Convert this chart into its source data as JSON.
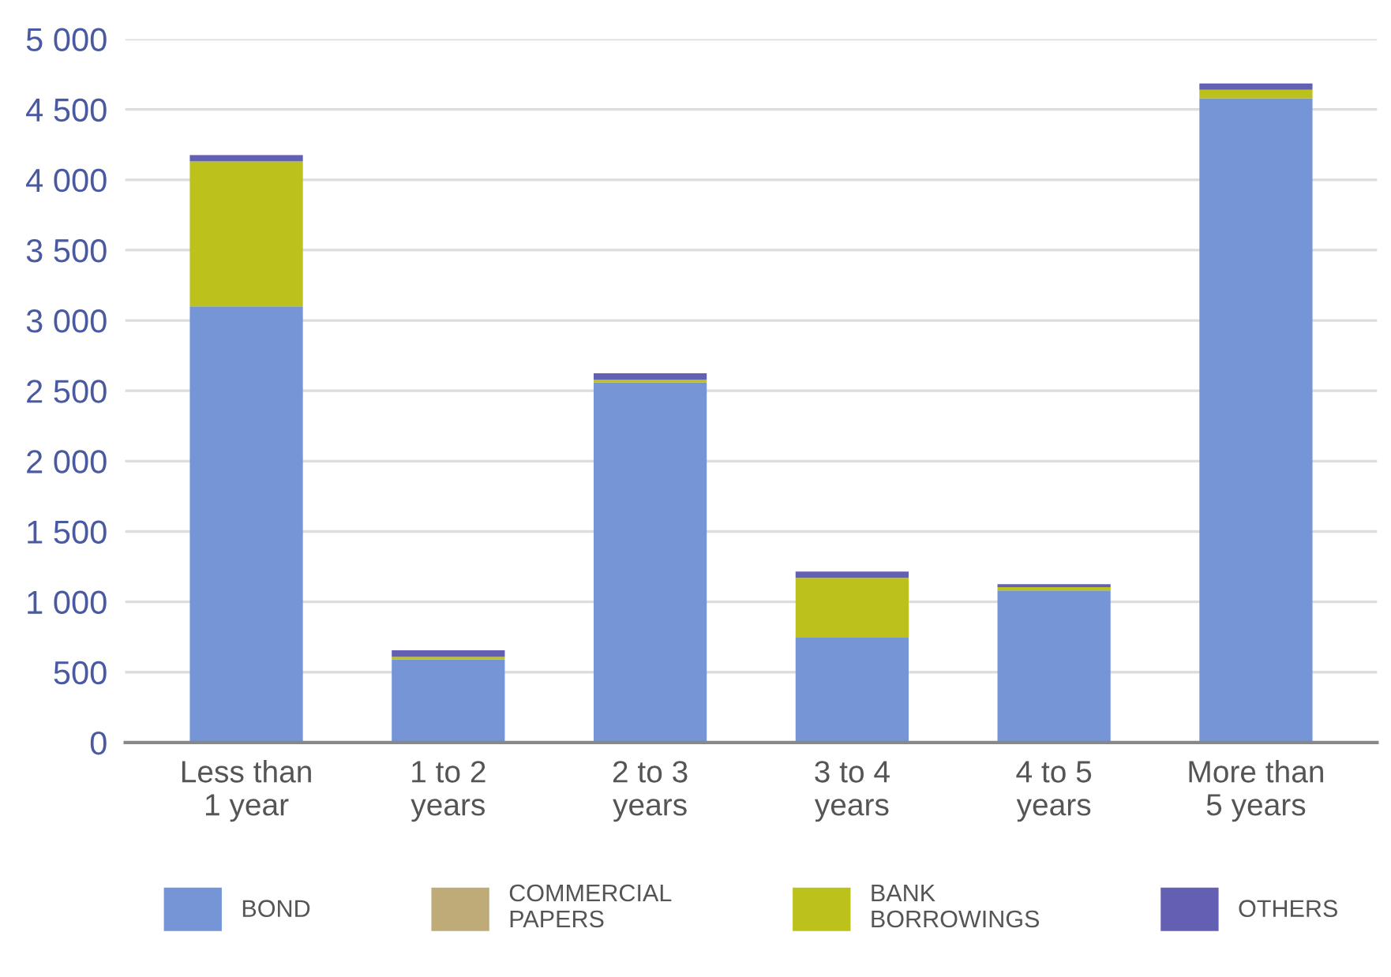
{
  "chart_data": {
    "type": "bar",
    "stacked": true,
    "categories": [
      "Less than\n1 year",
      "1 to 2\nyears",
      "2 to 3\nyears",
      "3 to 4\nyears",
      "4 to 5\nyears",
      "More than\n5 years"
    ],
    "series": [
      {
        "name": "BOND",
        "color": "#7595d6",
        "values": [
          3100,
          590,
          2560,
          750,
          1080,
          4580
        ]
      },
      {
        "name": "COMMERCIAL\nPAPERS",
        "color": "#bfab78",
        "values": [
          0,
          0,
          0,
          0,
          0,
          0
        ]
      },
      {
        "name": "BANK\nBORROWINGS",
        "color": "#bcc11c",
        "values": [
          1030,
          20,
          20,
          420,
          25,
          60
        ]
      },
      {
        "name": "OTHERS",
        "color": "#6360b4",
        "values": [
          45,
          45,
          45,
          45,
          20,
          45
        ]
      }
    ],
    "ylim": [
      0,
      5000
    ],
    "yticks": [
      {
        "value": 0,
        "label": "0"
      },
      {
        "value": 500,
        "label": "500"
      },
      {
        "value": 1000,
        "label": "1 000"
      },
      {
        "value": 1500,
        "label": "1 500"
      },
      {
        "value": 2000,
        "label": "2 000"
      },
      {
        "value": 2500,
        "label": "2 500"
      },
      {
        "value": 3000,
        "label": "3 000"
      },
      {
        "value": 3500,
        "label": "3 500"
      },
      {
        "value": 4000,
        "label": "4 000"
      },
      {
        "value": 4500,
        "label": "4 500"
      },
      {
        "value": 5000,
        "label": "5 000"
      }
    ],
    "grid": "y",
    "legend": "bottom"
  }
}
